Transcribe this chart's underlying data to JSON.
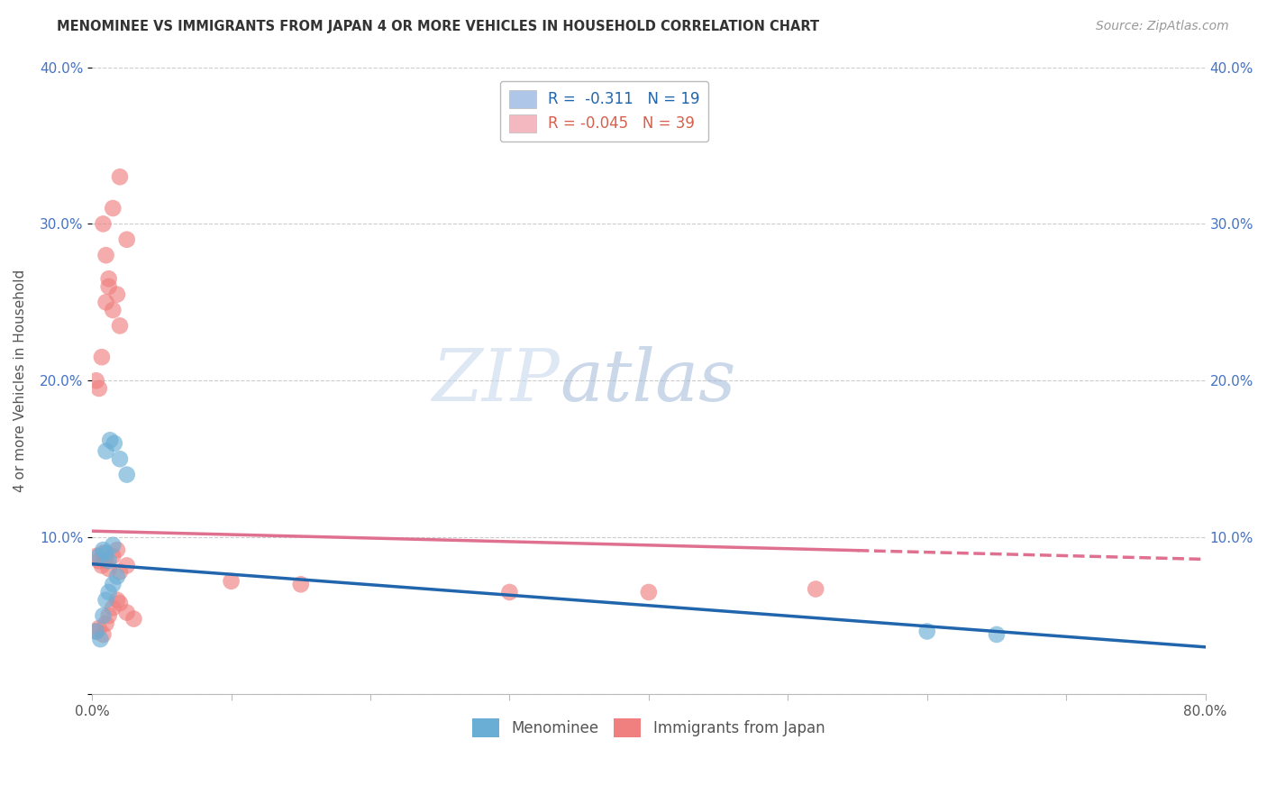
{
  "title": "MENOMINEE VS IMMIGRANTS FROM JAPAN 4 OR MORE VEHICLES IN HOUSEHOLD CORRELATION CHART",
  "source": "Source: ZipAtlas.com",
  "ylabel": "4 or more Vehicles in Household",
  "xlim": [
    0,
    0.8
  ],
  "ylim": [
    0,
    0.4
  ],
  "xtick_positions": [
    0.0,
    0.1,
    0.2,
    0.3,
    0.4,
    0.5,
    0.6,
    0.7,
    0.8
  ],
  "xticklabels": [
    "0.0%",
    "",
    "",
    "",
    "",
    "",
    "",
    "",
    "80.0%"
  ],
  "ytick_positions": [
    0.0,
    0.1,
    0.2,
    0.3,
    0.4
  ],
  "yticklabels": [
    "",
    "10.0%",
    "20.0%",
    "30.0%",
    "40.0%"
  ],
  "watermark_zip": "ZIP",
  "watermark_atlas": "atlas",
  "legend_label1": "R =  -0.311   N = 19",
  "legend_label2": "R = -0.045   N = 39",
  "legend_color1": "#aec6e8",
  "legend_color2": "#f4b8c1",
  "menominee_color": "#6aaed6",
  "japan_color": "#f08080",
  "trend_men_color": "#2166ac",
  "trend_jap_color": "#e07090",
  "background_color": "#ffffff",
  "grid_color": "#cccccc",
  "menominee_x": [
    0.005,
    0.008,
    0.01,
    0.012,
    0.015,
    0.01,
    0.013,
    0.016,
    0.02,
    0.025,
    0.003,
    0.006,
    0.008,
    0.01,
    0.012,
    0.015,
    0.018,
    0.6,
    0.65
  ],
  "menominee_y": [
    0.088,
    0.092,
    0.09,
    0.085,
    0.095,
    0.155,
    0.162,
    0.16,
    0.15,
    0.14,
    0.04,
    0.035,
    0.05,
    0.06,
    0.065,
    0.07,
    0.075,
    0.04,
    0.038
  ],
  "japan_x": [
    0.003,
    0.005,
    0.007,
    0.008,
    0.01,
    0.012,
    0.015,
    0.018,
    0.02,
    0.025,
    0.003,
    0.005,
    0.008,
    0.01,
    0.012,
    0.015,
    0.018,
    0.02,
    0.025,
    0.03,
    0.003,
    0.005,
    0.007,
    0.01,
    0.012,
    0.015,
    0.018,
    0.02,
    0.025,
    0.008,
    0.01,
    0.012,
    0.015,
    0.02,
    0.1,
    0.15,
    0.3,
    0.4,
    0.52
  ],
  "japan_y": [
    0.088,
    0.085,
    0.082,
    0.09,
    0.085,
    0.08,
    0.088,
    0.092,
    0.078,
    0.082,
    0.04,
    0.042,
    0.038,
    0.045,
    0.05,
    0.055,
    0.06,
    0.058,
    0.052,
    0.048,
    0.2,
    0.195,
    0.215,
    0.25,
    0.26,
    0.245,
    0.255,
    0.235,
    0.29,
    0.3,
    0.28,
    0.265,
    0.31,
    0.33,
    0.072,
    0.07,
    0.065,
    0.065,
    0.067
  ],
  "trend_men_x0": 0.0,
  "trend_men_x1": 0.8,
  "trend_men_y0": 0.083,
  "trend_men_y1": 0.03,
  "trend_jap_x0": 0.0,
  "trend_jap_x1": 0.8,
  "trend_jap_y0": 0.104,
  "trend_jap_y1": 0.086,
  "trend_jap_solid_end": 0.55
}
